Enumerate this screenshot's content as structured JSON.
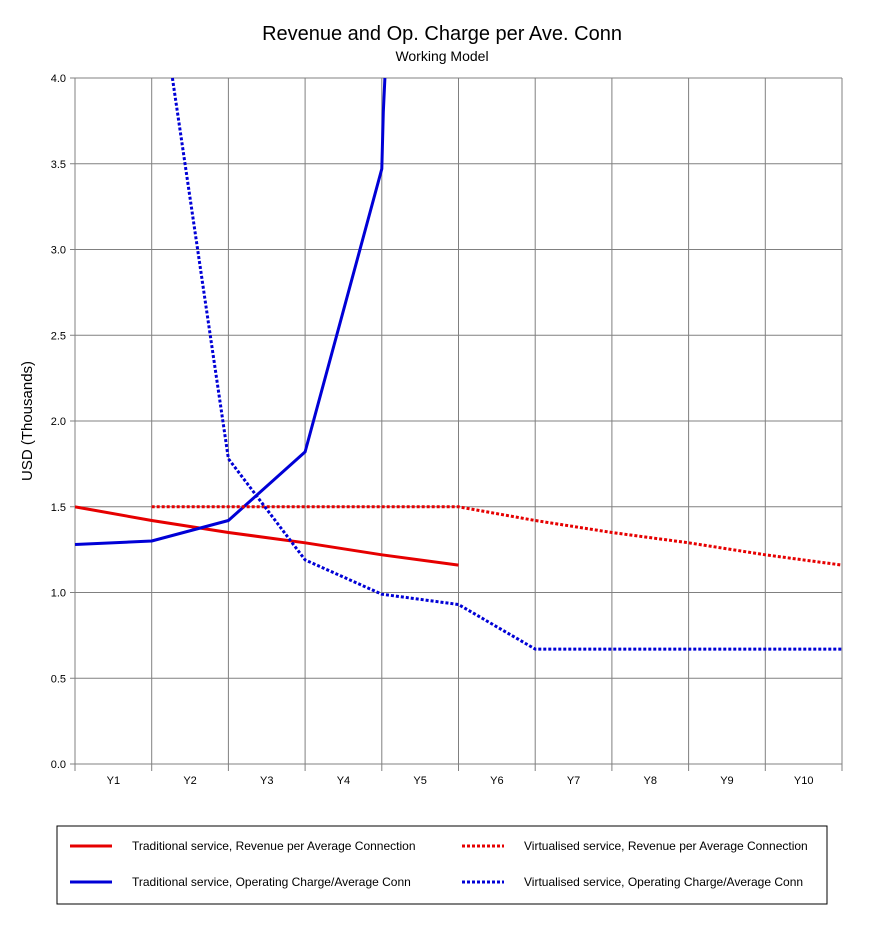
{
  "chart_data": {
    "type": "line",
    "title": "Revenue and Op. Charge per Ave. Conn",
    "subtitle": "Working Model",
    "xlabel": "",
    "ylabel": "USD  (Thousands)",
    "categories": [
      "Y1",
      "Y2",
      "Y3",
      "Y4",
      "Y5",
      "Y6",
      "Y7",
      "Y8",
      "Y9",
      "Y10"
    ],
    "x": [
      0,
      1,
      2,
      3,
      4,
      5,
      6,
      7,
      8,
      9,
      10
    ],
    "ylim": [
      0,
      4.0
    ],
    "yticks": [
      "0.0",
      "0.5",
      "1.0",
      "1.5",
      "2.0",
      "2.5",
      "3.0",
      "3.5",
      "4.0"
    ],
    "grid": true,
    "legend_position": "bottom",
    "series": [
      {
        "name": "Traditional service, Revenue per Average Connection",
        "color": "#e60000",
        "dash": "solid",
        "x": [
          0,
          1,
          2,
          3,
          4,
          5
        ],
        "values": [
          1.5,
          1.42,
          1.35,
          1.29,
          1.22,
          1.16
        ]
      },
      {
        "name": "Traditional service, Operating Charge/Average Conn",
        "color": "#0000d6",
        "dash": "solid",
        "x": [
          0,
          1,
          2,
          3,
          4,
          4.02,
          4.04
        ],
        "values": [
          1.28,
          1.3,
          1.42,
          1.82,
          3.47,
          3.8,
          4.0
        ]
      },
      {
        "name": "Virtualised service, Revenue per Average Connection",
        "color": "#e60000",
        "dash": "dotted",
        "x": [
          1,
          2,
          3,
          4,
          5,
          6,
          7,
          8,
          9,
          10
        ],
        "values": [
          1.5,
          1.5,
          1.5,
          1.5,
          1.5,
          1.42,
          1.35,
          1.29,
          1.22,
          1.16
        ]
      },
      {
        "name": "Virtualised service, Operating Charge/Average Conn",
        "color": "#0000d6",
        "dash": "dotted",
        "x": [
          1.27,
          2,
          3,
          4,
          5,
          6,
          7,
          8,
          9,
          10
        ],
        "values": [
          4.0,
          1.78,
          1.19,
          0.99,
          0.93,
          0.67,
          0.67,
          0.67,
          0.67,
          0.67
        ]
      }
    ]
  }
}
